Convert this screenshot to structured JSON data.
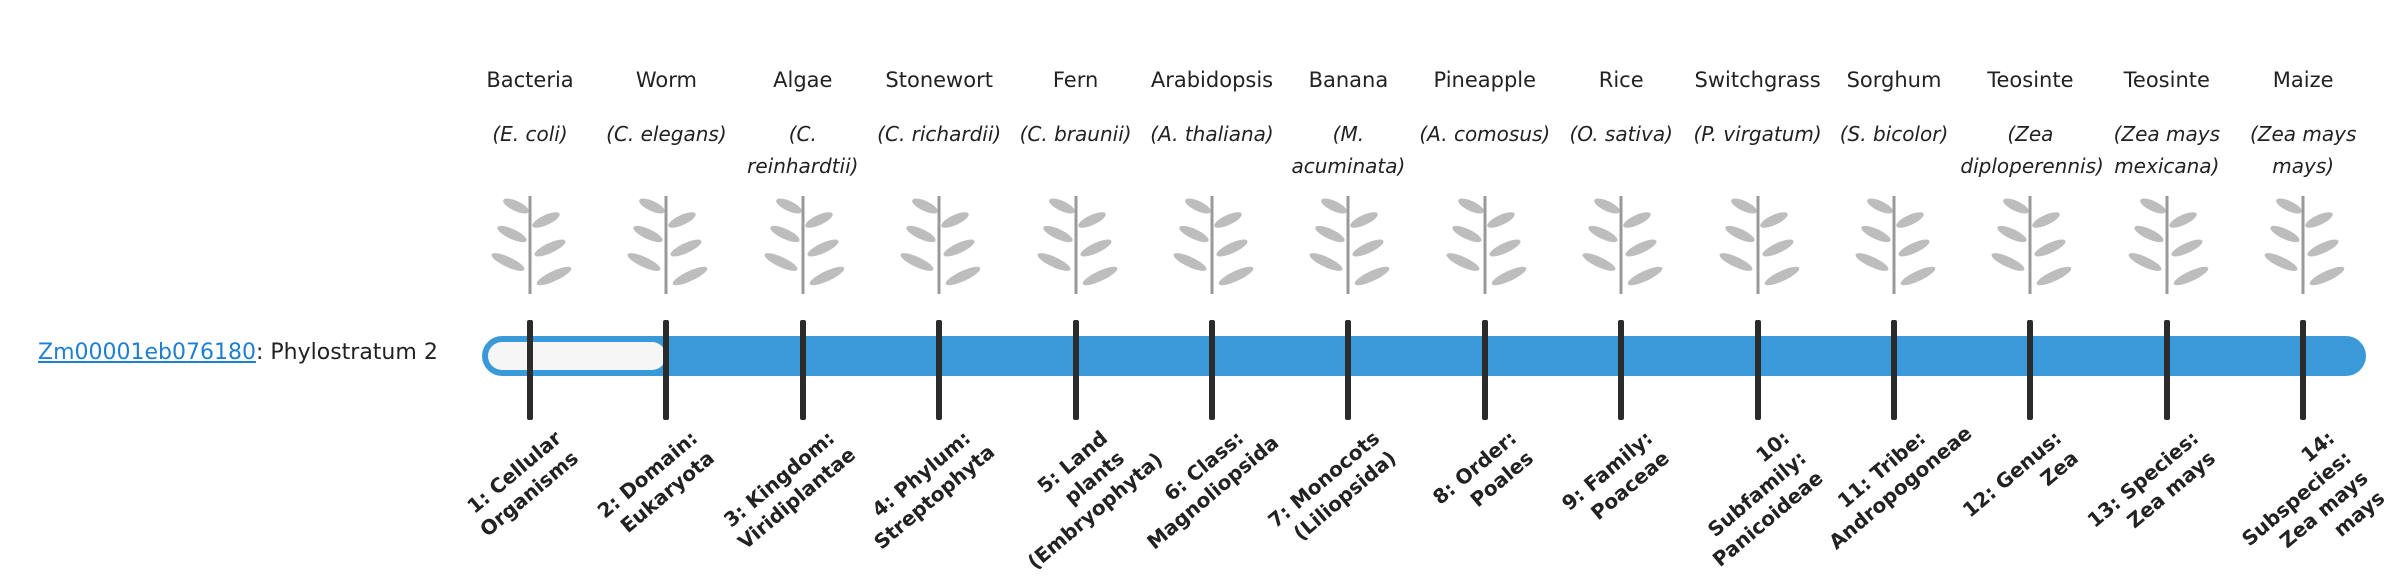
{
  "gene": {
    "id": "Zm00001eb076180",
    "stratum_label": ": Phylostratum",
    "stratum": 2
  },
  "organisms": [
    {
      "name": "Bacteria",
      "species": "(E. coli)",
      "level": "1: Cellular Organisms"
    },
    {
      "name": "Worm",
      "species": "(C. elegans)",
      "level": "2: Domain: Eukaryota"
    },
    {
      "name": "Algae",
      "species": "(C. reinhardtii)",
      "level": "3: Kingdom: Viridiplantae"
    },
    {
      "name": "Stonewort",
      "species": "(C. richardii)",
      "level": "4: Phylum: Streptophyta"
    },
    {
      "name": "Fern",
      "species": "(C. braunii)",
      "level": "5: Land plants (Embryophyta)"
    },
    {
      "name": "Arabidopsis",
      "species": "(A. thaliana)",
      "level": "6: Class: Magnoliopsida"
    },
    {
      "name": "Banana",
      "species": "(M. acuminata)",
      "level": "7: Monocots (Liliopsida)"
    },
    {
      "name": "Pineapple",
      "species": "(A. comosus)",
      "level": "8: Order: Poales"
    },
    {
      "name": "Rice",
      "species": "(O. sativa)",
      "level": "9: Family: Poaceae"
    },
    {
      "name": "Switchgrass",
      "species": "(P. virgatum)",
      "level": "10: Subfamily: Panicoideae"
    },
    {
      "name": "Sorghum",
      "species": "(S. bicolor)",
      "level": "11: Tribe: Andropogoneae"
    },
    {
      "name": "Teosinte",
      "species": "(Zea diploperennis)",
      "level": "12: Genus: Zea"
    },
    {
      "name": "Teosinte",
      "species": "(Zea mays mexicana)",
      "level": "13: Species: Zea mays"
    },
    {
      "name": "Maize",
      "species": "(Zea mays mays)",
      "level": "14: Subspecies: Zea mays mays"
    }
  ]
}
